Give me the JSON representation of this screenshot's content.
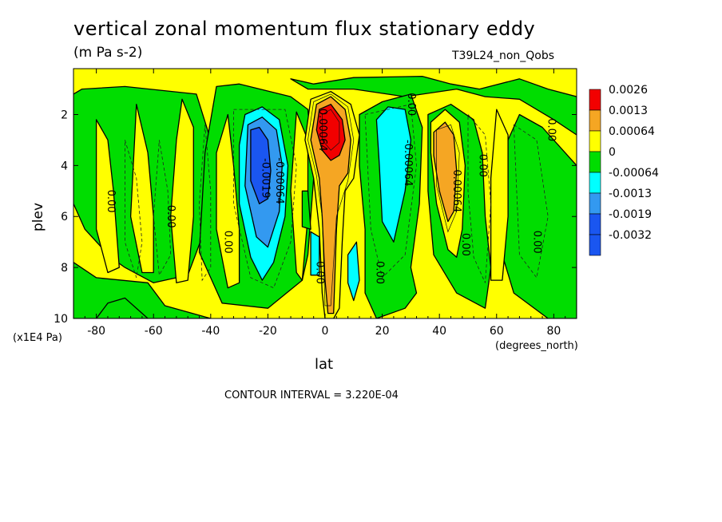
{
  "chart_data": {
    "type": "contour",
    "title": "vertical zonal momentum flux stationary eddy",
    "units": "(m Pa s-2)",
    "run_label": "T39L24_non_Qobs",
    "xlabel": "lat",
    "x_units": "(degrees_north)",
    "ylabel": "plev",
    "y_units": "(x1E4 Pa)",
    "contour_interval": "CONTOUR INTERVAL = 3.220E-04",
    "xlim": [
      -88,
      88
    ],
    "ylim": [
      10,
      0.2
    ],
    "x_ticks": [
      -80,
      -60,
      -40,
      -20,
      0,
      20,
      40,
      60,
      80
    ],
    "y_ticks": [
      2,
      4,
      6,
      8,
      10
    ],
    "colorbar": [
      {
        "label": "0.0026",
        "color": "#f20000"
      },
      {
        "label": "0.0013",
        "color": "#f5a623"
      },
      {
        "label": "0.00064",
        "color": "#ffff00"
      },
      {
        "label": "0",
        "color": "#00dd00"
      },
      {
        "label": "-0.00064",
        "color": "#00ffff"
      },
      {
        "label": "-0.0013",
        "color": "#3399f0"
      },
      {
        "label": "-0.0019",
        "color": "#1a56f0"
      },
      {
        "label": "-0.0032",
        "color": "#1a56f0"
      }
    ],
    "features": [
      {
        "lat": -22,
        "plev": 4.2,
        "value": -0.0019,
        "kind": "min"
      },
      {
        "lat": 2,
        "plev": 2.7,
        "value": 0.0026,
        "kind": "max"
      },
      {
        "lat": 24,
        "plev": 4.5,
        "value": -0.00064,
        "kind": "min"
      },
      {
        "lat": 42,
        "plev": 4.2,
        "value": 0.0013,
        "kind": "max"
      }
    ],
    "contour_labels": [
      {
        "text": "0.00",
        "lat": -76,
        "plev": 5.4
      },
      {
        "text": "0.00",
        "lat": -55,
        "plev": 6.0
      },
      {
        "text": "0.00",
        "lat": -35,
        "plev": 7.0
      },
      {
        "text": "-0.0019",
        "lat": -22,
        "plev": 4.5
      },
      {
        "text": "-0.00064",
        "lat": -17,
        "plev": 4.6
      },
      {
        "text": "0.00064",
        "lat": -2,
        "plev": 2.6
      },
      {
        "text": "0.00",
        "lat": -3,
        "plev": 8.2
      },
      {
        "text": "0.00",
        "lat": 18,
        "plev": 8.2
      },
      {
        "text": "0.00",
        "lat": 29,
        "plev": 1.6
      },
      {
        "text": "-0.00064",
        "lat": 28,
        "plev": 3.9
      },
      {
        "text": "0.00064",
        "lat": 45,
        "plev": 5.0
      },
      {
        "text": "0.00",
        "lat": 48,
        "plev": 7.1
      },
      {
        "text": "0.00",
        "lat": 54,
        "plev": 4.0
      },
      {
        "text": "0.00",
        "lat": 78,
        "plev": 2.6
      },
      {
        "text": "0.00",
        "lat": 73,
        "plev": 7.0
      }
    ]
  }
}
